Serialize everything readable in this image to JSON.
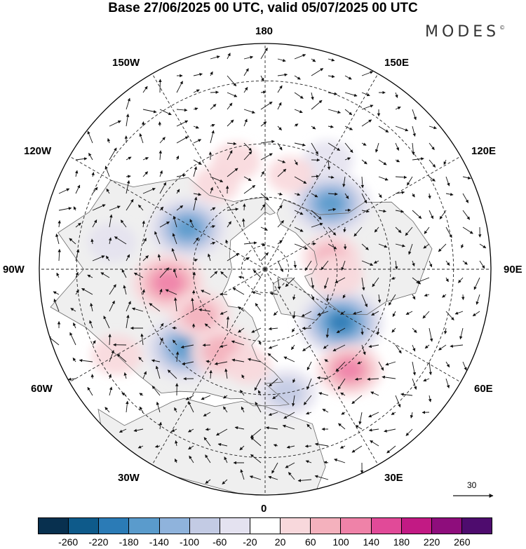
{
  "title": "Base 27/06/2025 00 UTC, valid 05/07/2025 00 UTC",
  "brand": "MODES",
  "brand_mark": "©",
  "longitude_labels": {
    "lon_180": "180",
    "lon_150w": "150W",
    "lon_150e": "150E",
    "lon_120w": "120W",
    "lon_120e": "120E",
    "lon_90w": "90W",
    "lon_90e": "90E",
    "lon_60w": "60W",
    "lon_60e": "60E",
    "lon_30w": "30W",
    "lon_30e": "30E",
    "lon_0": "0"
  },
  "reference_vector": {
    "value": "30"
  },
  "colorbar": {
    "ticks": [
      "-260",
      "-220",
      "-180",
      "-140",
      "-100",
      "-60",
      "-20",
      "20",
      "60",
      "100",
      "140",
      "180",
      "220",
      "260"
    ],
    "colors": [
      "#08304f",
      "#0e5a8a",
      "#2b7bb6",
      "#5a9bcc",
      "#8fb3dc",
      "#c3cbe4",
      "#e4e2f0",
      "#ffffff",
      "#f8d8dc",
      "#f4b1bd",
      "#ef82a8",
      "#e14a98",
      "#c21a84",
      "#8e0d7c",
      "#4e0c6e"
    ]
  },
  "map": {
    "projection": "north polar stereographic",
    "land_color": "#efefef",
    "ocean_color": "#ffffff",
    "coastline_color": "#6a6a6a",
    "graticule_style": "dashed",
    "anomalies": [
      {
        "lon": -135,
        "lat": 52,
        "value": -170
      },
      {
        "lon": 118,
        "lat": 54,
        "value": -160
      },
      {
        "lon": -55,
        "lat": 52,
        "value": -190
      },
      {
        "lon": 45,
        "lat": 45,
        "value": -180
      },
      {
        "lon": 82,
        "lat": 50,
        "value": 140
      },
      {
        "lon": 55,
        "lat": 57,
        "value": 90
      },
      {
        "lon": -100,
        "lat": 62,
        "value": 80
      },
      {
        "lon": -85,
        "lat": 60,
        "value": 60
      },
      {
        "lon": -40,
        "lat": 38,
        "value": 110
      },
      {
        "lon": 28,
        "lat": 52,
        "value": 100
      },
      {
        "lon": 165,
        "lat": 45,
        "value": 40
      },
      {
        "lon": 150,
        "lat": 50,
        "value": 30
      },
      {
        "lon": -150,
        "lat": 40,
        "value": -50
      },
      {
        "lon": -165,
        "lat": 50,
        "value": 30
      },
      {
        "lon": -10,
        "lat": 40,
        "value": -90
      },
      {
        "lon": 100,
        "lat": 30,
        "value": -40
      },
      {
        "lon": 10,
        "lat": 50,
        "value": 30
      },
      {
        "lon": 60,
        "lat": 25,
        "value": 50
      }
    ]
  }
}
